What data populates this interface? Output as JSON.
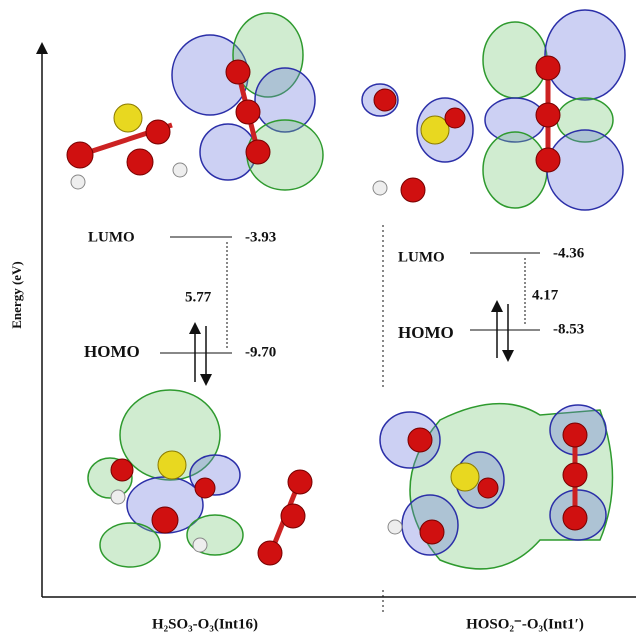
{
  "y_axis_label": "Energy (eV)",
  "panels": [
    {
      "label": "H₂SO₃-O₃(Int16)",
      "lumo": {
        "label": "LUMO",
        "energy": "-3.93"
      },
      "homo": {
        "label": "HOMO",
        "energy": "-9.70"
      },
      "gap": "5.77"
    },
    {
      "label": "HOSO₂⁻-O₃(Int1′)",
      "lumo": {
        "label": "LUMO",
        "energy": "-4.36"
      },
      "homo": {
        "label": "HOMO",
        "energy": "-8.53"
      },
      "gap": "4.17"
    }
  ]
}
